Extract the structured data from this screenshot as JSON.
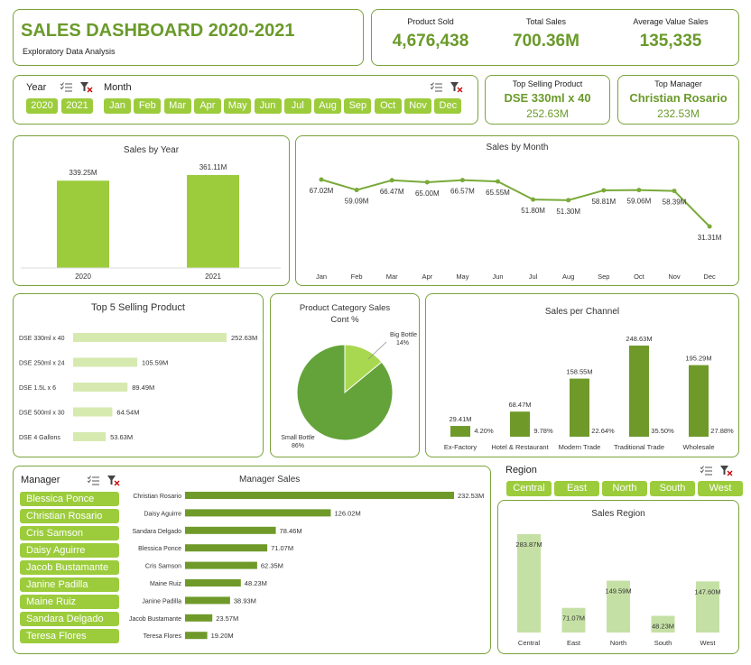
{
  "header": {
    "title": "SALES DASHBOARD 2020-2021",
    "subtitle": "Exploratory Data Analysis"
  },
  "kpis": [
    {
      "label": "Product Sold",
      "value": "4,676,438"
    },
    {
      "label": "Total Sales",
      "value": "700.36M"
    },
    {
      "label": "Average Value Sales",
      "value": "135,335"
    }
  ],
  "top_product": {
    "label": "Top Selling Product",
    "name": "DSE 330ml x 40",
    "value": "252.63M"
  },
  "top_manager": {
    "label": "Top Manager",
    "name": "Christian Rosario",
    "value": "232.53M"
  },
  "year_slicer": {
    "label": "Year",
    "items": [
      "2020",
      "2021"
    ]
  },
  "month_slicer": {
    "label": "Month",
    "items": [
      "Jan",
      "Feb",
      "Mar",
      "Apr",
      "May",
      "Jun",
      "Jul",
      "Aug",
      "Sep",
      "Oct",
      "Nov",
      "Dec"
    ]
  },
  "manager_slicer": {
    "label": "Manager",
    "items": [
      "Blessica Ponce",
      "Christian Rosario",
      "Cris Samson",
      "Daisy Aguirre",
      "Jacob Bustamante",
      "Janine Padilla",
      "Maine Ruiz",
      "Sandara Delgado",
      "Teresa Flores"
    ]
  },
  "region_slicer": {
    "label": "Region",
    "items": [
      "Central",
      "East",
      "North",
      "South",
      "West"
    ]
  },
  "colors": {
    "accent": "#7aa33a",
    "button": "#9ccc3c",
    "dark_bar": "#6f9a2a",
    "light_bar": "#d6eab0",
    "region_bar": "#c5e0a5",
    "title": "#6a9a2a"
  },
  "chart_data": [
    {
      "id": "sales_by_year",
      "type": "bar",
      "title": "Sales by Year",
      "categories": [
        "2020",
        "2021"
      ],
      "values": [
        339.25,
        361.11
      ],
      "labels": [
        "339.25M",
        "361.11M"
      ]
    },
    {
      "id": "sales_by_month",
      "type": "line",
      "title": "Sales by Month",
      "categories": [
        "Jan",
        "Feb",
        "Mar",
        "Apr",
        "May",
        "Jun",
        "Jul",
        "Aug",
        "Sep",
        "Oct",
        "Nov",
        "Dec"
      ],
      "values": [
        67.02,
        59.09,
        66.47,
        65.0,
        66.57,
        65.55,
        51.8,
        51.3,
        58.81,
        59.06,
        58.39,
        31.31
      ],
      "labels": [
        "67.02M",
        "59.09M",
        "66.47M",
        "65.00M",
        "66.57M",
        "65.55M",
        "51.80M",
        "51.30M",
        "58.81M",
        "59.06M",
        "58.39M",
        "31.31M"
      ]
    },
    {
      "id": "top5_products",
      "type": "bar",
      "title": "Top 5 Selling Product",
      "categories": [
        "DSE 330ml x 40",
        "DSE 250ml x 24",
        "DSE 1.5L x 6",
        "DSE 500ml x 30",
        "DSE 4 Gallons"
      ],
      "values": [
        252.63,
        105.59,
        89.49,
        64.54,
        53.63
      ],
      "labels": [
        "252.63M",
        "105.59M",
        "89.49M",
        "64.54M",
        "53.63M"
      ]
    },
    {
      "id": "category_pie",
      "type": "pie",
      "title": "Product Category Sales Cont %",
      "categories": [
        "Big Bottle",
        "Small Bottle"
      ],
      "values": [
        14,
        86
      ],
      "labels": [
        "14%",
        "86%"
      ]
    },
    {
      "id": "sales_per_channel",
      "type": "bar",
      "title": "Sales per Channel",
      "categories": [
        "Ex-Factory",
        "Hotel & Restaurant",
        "Modern Trade",
        "Traditional Trade",
        "Wholesale"
      ],
      "values": [
        29.41,
        68.47,
        158.55,
        248.63,
        195.29
      ],
      "labels": [
        "29.41M",
        "68.47M",
        "158.55M",
        "248.63M",
        "195.29M"
      ],
      "percents": [
        "4.20%",
        "9.78%",
        "22.64%",
        "35.50%",
        "27.88%"
      ]
    },
    {
      "id": "manager_sales",
      "type": "bar",
      "title": "Manager Sales",
      "categories": [
        "Christian Rosario",
        "Daisy Aguirre",
        "Sandara Delgado",
        "Blessica Ponce",
        "Cris Samson",
        "Maine Ruiz",
        "Janine Padilla",
        "Jacob Bustamante",
        "Teresa Flores"
      ],
      "values": [
        232.53,
        126.02,
        78.46,
        71.07,
        62.35,
        48.23,
        38.93,
        23.57,
        19.2
      ],
      "labels": [
        "232.53M",
        "126.02M",
        "78.46M",
        "71.07M",
        "62.35M",
        "48.23M",
        "38.93M",
        "23.57M",
        "19.20M"
      ]
    },
    {
      "id": "sales_region",
      "type": "bar",
      "title": "Sales Region",
      "categories": [
        "Central",
        "East",
        "North",
        "South",
        "West"
      ],
      "values": [
        283.87,
        71.07,
        149.59,
        48.23,
        147.6
      ],
      "labels": [
        "283.87M",
        "71.07M",
        "149.59M",
        "48.23M",
        "147.60M"
      ]
    }
  ]
}
